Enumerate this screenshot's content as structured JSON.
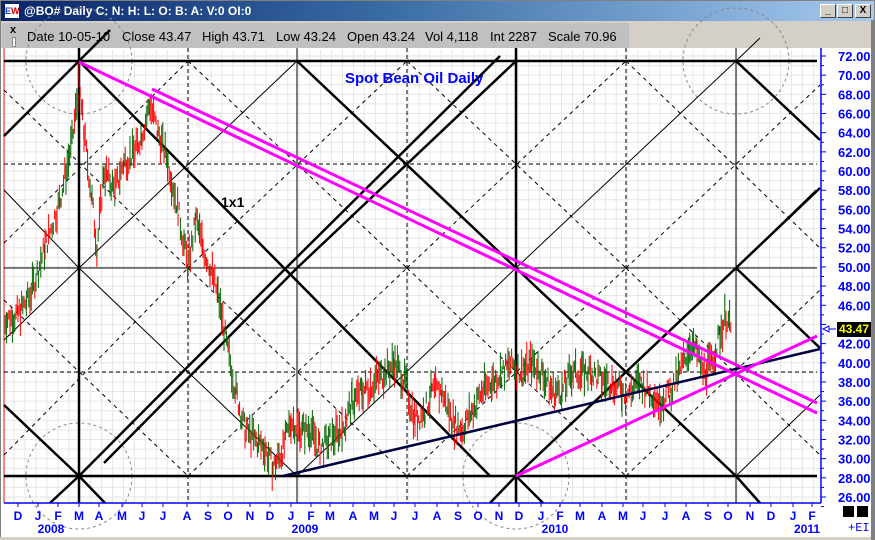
{
  "window": {
    "title": "@BO# Daily C: N: H: L: O: B: A: V:0 OI:0",
    "app_icon": {
      "e": "E",
      "w": "W"
    },
    "controls": {
      "minimize": "_",
      "maximize": "□",
      "close": "X"
    }
  },
  "infobar": {
    "close_glyph": "x",
    "items": [
      {
        "label": "Date",
        "value": "10-05-10",
        "text": "Date 10-05-10"
      },
      {
        "label": "Close",
        "value": "43.47",
        "text": "Close 43.47"
      },
      {
        "label": "High",
        "value": "43.71",
        "text": "High 43.71"
      },
      {
        "label": "Low",
        "value": "43.24",
        "text": "Low 43.24"
      },
      {
        "label": "Open",
        "value": "43.24",
        "text": "Open 43.24"
      },
      {
        "label": "Vol",
        "value": "4,118",
        "text": "Vol 4,118"
      },
      {
        "label": "Int",
        "value": "2287",
        "text": "Int 2287"
      },
      {
        "label": "Scale",
        "value": "70.96",
        "text": "Scale 70.96"
      }
    ]
  },
  "chart": {
    "title": "Spot Bean Oil Daily",
    "annotation": "1x1",
    "last_price_label": "43.47",
    "corner_label": "+EI",
    "colors": {
      "axis": "#0000ff",
      "title": "#0000ff",
      "fan_lines": "#ff00ff",
      "trend_line": "#000040",
      "gann_lines": "#000000",
      "up_bar": "#006400",
      "down_bar": "#ff0000",
      "last_price_bg": "#000000",
      "last_price_fg": "#ffff00"
    }
  },
  "chart_data": {
    "type": "bar",
    "title": "Spot Bean Oil Daily",
    "subtitle": "@BO# Daily",
    "xlabel": "",
    "ylabel": "",
    "ylim": [
      26.0,
      72.0
    ],
    "y_ticks": [
      "72.00",
      "70.00",
      "68.00",
      "66.00",
      "64.00",
      "62.00",
      "60.00",
      "58.00",
      "56.00",
      "54.00",
      "52.00",
      "50.00",
      "48.00",
      "46.00",
      "44.00",
      "42.00",
      "40.00",
      "38.00",
      "36.00",
      "34.00",
      "32.00",
      "30.00",
      "28.00",
      "26.00"
    ],
    "x_month_ticks": [
      "D",
      "J",
      "F",
      "M",
      "A",
      "M",
      "J",
      "J",
      "A",
      "S",
      "O",
      "N",
      "D",
      "J",
      "F",
      "M",
      "A",
      "M",
      "J",
      "J",
      "A",
      "S",
      "O",
      "N",
      "D",
      "J",
      "F",
      "M",
      "A",
      "M",
      "J",
      "J",
      "A",
      "S",
      "O",
      "N",
      "D",
      "J",
      "F"
    ],
    "x_year_labels": [
      "2008",
      "2009",
      "2010",
      "2011"
    ],
    "grid": true,
    "last_value": 43.47,
    "approx_monthly_closes": {
      "categories": [
        "Dec-07",
        "Jan-08",
        "Feb-08",
        "Mar-08",
        "Apr-08",
        "May-08",
        "Jun-08",
        "Jul-08",
        "Aug-08",
        "Sep-08",
        "Oct-08",
        "Nov-08",
        "Dec-08",
        "Jan-09",
        "Feb-09",
        "Mar-09",
        "Apr-09",
        "May-09",
        "Jun-09",
        "Jul-09",
        "Aug-09",
        "Sep-09",
        "Oct-09",
        "Nov-09",
        "Dec-09",
        "Jan-10",
        "Feb-10",
        "Mar-10",
        "Apr-10",
        "May-10",
        "Jun-10",
        "Jul-10",
        "Aug-10",
        "Sep-10",
        "Oct-10"
      ],
      "values": [
        44.5,
        49.5,
        62.0,
        57.0,
        59.0,
        60.0,
        67.0,
        62.0,
        52.0,
        49.5,
        40.0,
        32.0,
        30.0,
        33.5,
        31.0,
        33.0,
        38.0,
        39.5,
        37.0,
        34.5,
        36.0,
        33.5,
        38.0,
        40.0,
        40.5,
        38.0,
        39.0,
        39.5,
        39.0,
        37.5,
        36.5,
        38.5,
        41.0,
        40.5,
        43.47
      ]
    },
    "key_points": [
      {
        "label": "High",
        "date": "Mar-08",
        "price": 71.0
      },
      {
        "label": "Low",
        "date": "Dec-08",
        "price": 28.0
      },
      {
        "label": "Last",
        "date": "10-05-10",
        "price": 43.47
      }
    ],
    "annotations": [
      "1x1",
      "Gann grid with squares, 1x1 angles and circles",
      "Magenta parallel downtrend channel from Mar-08 high",
      "Magenta uptrend line from Dec-09",
      "Navy trendline from Dec-08 low"
    ]
  }
}
